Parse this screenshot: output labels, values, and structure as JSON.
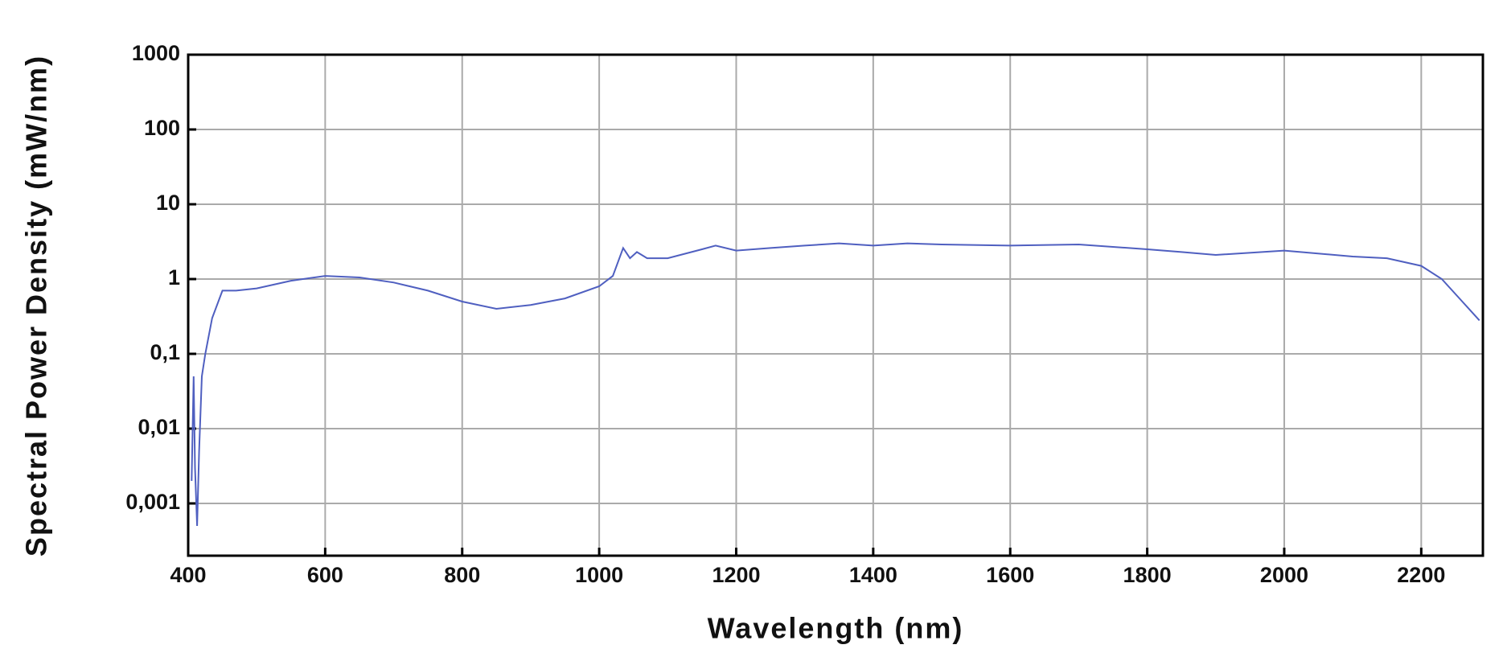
{
  "chart_data": {
    "type": "line",
    "log_y": true,
    "grid": true,
    "xlabel": "Wavelength (nm)",
    "ylabel": "Spectral Power Density (mW/nm)",
    "xlim": [
      400,
      2290
    ],
    "xticks": [
      400,
      600,
      800,
      1000,
      1200,
      1400,
      1600,
      1800,
      2000,
      2200
    ],
    "ylim": [
      0.0002,
      1000
    ],
    "yticks": [
      {
        "value": 0.001,
        "label": "0,001"
      },
      {
        "value": 0.01,
        "label": "0,01"
      },
      {
        "value": 0.1,
        "label": "0,1"
      },
      1,
      10,
      100,
      1000
    ],
    "series": [
      {
        "color": "#4f5fc0",
        "x": [
          405,
          408,
          410,
          413,
          416,
          420,
          425,
          435,
          450,
          470,
          500,
          550,
          600,
          650,
          700,
          750,
          800,
          850,
          900,
          950,
          1000,
          1020,
          1035,
          1045,
          1055,
          1070,
          1100,
          1150,
          1170,
          1200,
          1250,
          1300,
          1350,
          1400,
          1450,
          1500,
          1600,
          1700,
          1800,
          1850,
          1900,
          2000,
          2100,
          2150,
          2200,
          2230,
          2260,
          2285
        ],
        "values": [
          0.002,
          0.05,
          0.003,
          0.0005,
          0.005,
          0.05,
          0.1,
          0.3,
          0.7,
          0.7,
          0.75,
          0.95,
          1.1,
          1.05,
          0.9,
          0.7,
          0.5,
          0.4,
          0.45,
          0.55,
          0.8,
          1.1,
          2.6,
          1.9,
          2.3,
          1.9,
          1.9,
          2.5,
          2.8,
          2.4,
          2.6,
          2.8,
          3.0,
          2.8,
          3.0,
          2.9,
          2.8,
          2.9,
          2.5,
          2.3,
          2.1,
          2.4,
          2.0,
          1.9,
          1.5,
          1.0,
          0.5,
          0.28
        ]
      }
    ]
  }
}
